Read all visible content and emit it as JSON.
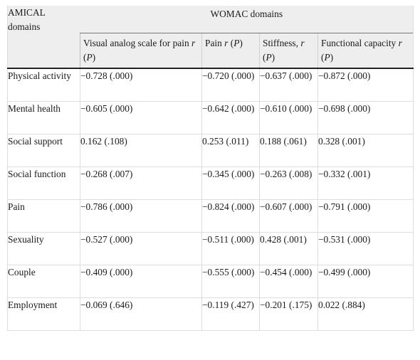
{
  "header": {
    "amical": "AMICAL domains",
    "womac": "WOMAC domains",
    "columns": [
      {
        "pre": "Visual analog scale for pain ",
        "r": "r",
        "mid": " (",
        "p": "P",
        "post": ")"
      },
      {
        "pre": "Pain ",
        "r": "r",
        "mid": " (",
        "p": "P",
        "post": ")"
      },
      {
        "pre": "Stiffness, ",
        "r": "r",
        "mid": " (",
        "p": "P",
        "post": ")"
      },
      {
        "pre": "Functional capacity ",
        "r": "r",
        "mid": " (",
        "p": "P",
        "post": ")"
      }
    ]
  },
  "rows": [
    {
      "domain": "Physical activity",
      "vas": "−0.728 (.000)",
      "pain": "−0.720 (.000)",
      "stiffness": "−0.637 (.000)",
      "function": "−0.872 (.000)"
    },
    {
      "domain": "Mental health",
      "vas": "−0.605 (.000)",
      "pain": "−0.642 (.000)",
      "stiffness": "−0.610 (.000)",
      "function": "−0.698 (.000)"
    },
    {
      "domain": "Social support",
      "vas": "0.162 (.108)",
      "pain": "0.253 (.011)",
      "stiffness": "0.188 (.061)",
      "function": "0.328 (.001)"
    },
    {
      "domain": "Social function",
      "vas": "−0.268 (.007)",
      "pain": "−0.345 (.000)",
      "stiffness": "−0.263 (.008)",
      "function": "−0.332 (.001)"
    },
    {
      "domain": "Pain",
      "vas": "−0.786 (.000)",
      "pain": "−0.824 (.000)",
      "stiffness": "−0.607 (.000)",
      "function": "−0.791 (.000)"
    },
    {
      "domain": "Sexuality",
      "vas": "−0.527 (.000)",
      "pain": "−0.511 (.000)",
      "stiffness": "0.428 (.001)",
      "function": "−0.531 (.000)"
    },
    {
      "domain": "Couple",
      "vas": "−0.409 (.000)",
      "pain": "−0.555 (.000)",
      "stiffness": "−0.454 (.000)",
      "function": "−0.499 (.000)"
    },
    {
      "domain": "Employment",
      "vas": "−0.069 (.646)",
      "pain": "−0.119 (.427)",
      "stiffness": "−0.201 (.175)",
      "function": "0.022 (.884)"
    }
  ]
}
